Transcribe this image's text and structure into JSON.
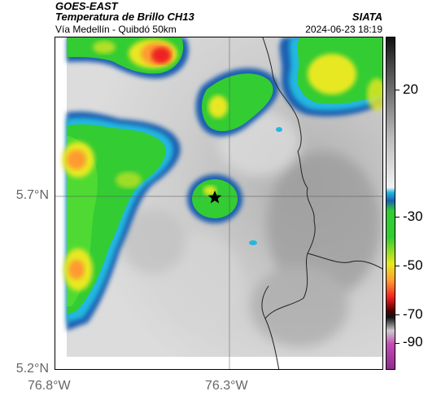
{
  "header": {
    "satellite": "GOES-EAST",
    "product": "Temperatura de Brillo CH13",
    "route": "Vía Medellín - Quibdó 50km",
    "organization": "SIATA",
    "timestamp": "2024-06-23 18:19"
  },
  "map": {
    "lat_labels": [
      "5.7°N",
      "5.2°N"
    ],
    "lon_labels": [
      "76.8°W",
      "76.3°W"
    ],
    "marker": "star-icon",
    "colors": {
      "cloud_green": "#33cc33",
      "cloud_yellow": "#e8e820",
      "cloud_orange": "#ff9a33",
      "cloud_red": "#ee2222",
      "edge_blue": "#1a5fb0",
      "edge_cyan": "#22b8e0"
    }
  },
  "colorbar": {
    "ticks": [
      "20",
      "-30",
      "-50",
      "-70",
      "-90"
    ]
  }
}
